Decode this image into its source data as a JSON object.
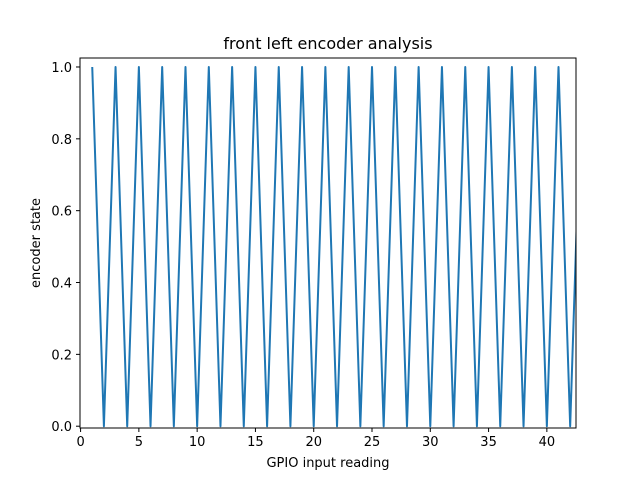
{
  "chart_data": {
    "type": "line",
    "title": "front left encoder analysis",
    "xlabel": "GPIO input reading",
    "ylabel": "encoder state",
    "xlim": [
      -0.05,
      42.5
    ],
    "ylim": [
      -0.005,
      1.025
    ],
    "grid": false,
    "legend": "none",
    "xticks": [
      0,
      5,
      10,
      15,
      20,
      25,
      30,
      35,
      40
    ],
    "xtick_labels": [
      "0",
      "5",
      "10",
      "15",
      "20",
      "25",
      "30",
      "35",
      "40"
    ],
    "yticks": [
      0.0,
      0.2,
      0.4,
      0.6,
      0.8,
      1.0
    ],
    "ytick_labels": [
      "0.0",
      "0.2",
      "0.4",
      "0.6",
      "0.8",
      "1.0"
    ],
    "series": [
      {
        "color": "#1f77b4",
        "x": [
          1,
          2,
          3,
          4,
          5,
          6,
          7,
          8,
          9,
          10,
          11,
          12,
          13,
          14,
          15,
          16,
          17,
          18,
          19,
          20,
          21,
          22,
          23,
          24,
          25,
          26,
          27,
          28,
          29,
          30,
          31,
          32,
          33,
          34,
          35,
          36,
          37,
          38,
          39,
          40,
          41,
          42,
          43
        ],
        "y": [
          1,
          0,
          1,
          0,
          1,
          0,
          1,
          0,
          1,
          0,
          1,
          0,
          1,
          0,
          1,
          0,
          1,
          0,
          1,
          0,
          1,
          0,
          1,
          0,
          1,
          0,
          1,
          0,
          1,
          0,
          1,
          0,
          1,
          0,
          1,
          0,
          1,
          0,
          1,
          0,
          1,
          0,
          1
        ]
      }
    ]
  }
}
